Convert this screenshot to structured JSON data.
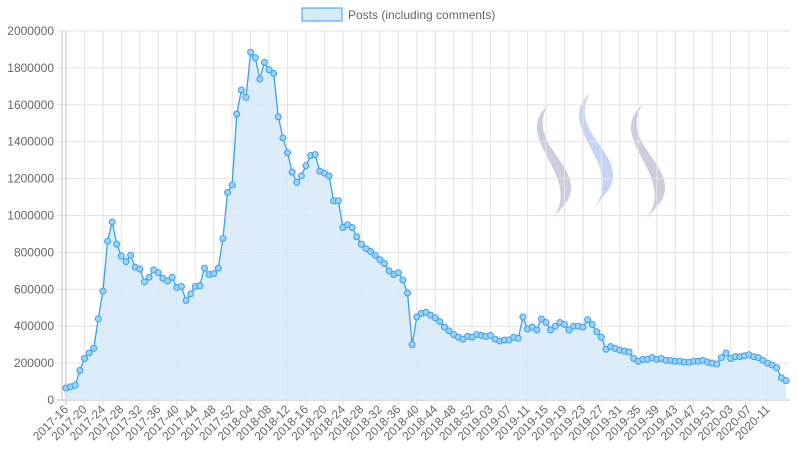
{
  "chart_data": {
    "type": "area",
    "legend": {
      "position": "top",
      "label": "Posts (including comments)"
    },
    "colors": {
      "line": "#36a2eb",
      "fill": "#d6eaf8",
      "point_fill": "#9fd0f3",
      "grid": "#e2e2e2",
      "axis_text": "#666666",
      "watermark": "#b9bdd4",
      "watermark_mid": "#b6c5f0"
    },
    "y_axis": {
      "min": 0,
      "max": 2000000,
      "step": 200000,
      "ticks": [
        "0",
        "200000",
        "400000",
        "600000",
        "800000",
        "1000000",
        "1200000",
        "1400000",
        "1600000",
        "1800000",
        "2000000"
      ]
    },
    "x_tick_labels": [
      "2017-16",
      "2017-20",
      "2017-24",
      "2017-28",
      "2017-32",
      "2017-36",
      "2017-40",
      "2017-44",
      "2017-48",
      "2017-52",
      "2018-04",
      "2018-08",
      "2018-12",
      "2018-16",
      "2018-20",
      "2018-24",
      "2018-28",
      "2018-32",
      "2018-36",
      "2018-40",
      "2018-44",
      "2018-48",
      "2018-52",
      "2019-03",
      "2019-07",
      "2019-11",
      "2019-15",
      "2019-19",
      "2019-23",
      "2019-27",
      "2019-31",
      "2019-35",
      "2019-39",
      "2019-43",
      "2019-47",
      "2019-51",
      "2020-03",
      "2020-07",
      "2020-11"
    ],
    "grid": true,
    "series": [
      {
        "name": "Posts (including comments)",
        "values": [
          65000,
          72000,
          80000,
          160000,
          225000,
          255000,
          280000,
          440000,
          590000,
          860000,
          965000,
          845000,
          780000,
          750000,
          785000,
          720000,
          710000,
          640000,
          665000,
          705000,
          690000,
          660000,
          645000,
          665000,
          610000,
          615000,
          540000,
          575000,
          615000,
          620000,
          715000,
          680000,
          685000,
          715000,
          875000,
          1125000,
          1165000,
          1550000,
          1680000,
          1640000,
          1885000,
          1855000,
          1740000,
          1830000,
          1790000,
          1770000,
          1535000,
          1420000,
          1340000,
          1235000,
          1180000,
          1215000,
          1270000,
          1325000,
          1330000,
          1240000,
          1230000,
          1215000,
          1080000,
          1080000,
          935000,
          950000,
          935000,
          885000,
          845000,
          820000,
          805000,
          785000,
          760000,
          740000,
          700000,
          680000,
          690000,
          650000,
          580000,
          300000,
          450000,
          470000,
          475000,
          460000,
          445000,
          425000,
          395000,
          375000,
          355000,
          340000,
          330000,
          345000,
          340000,
          355000,
          350000,
          345000,
          350000,
          330000,
          320000,
          325000,
          325000,
          340000,
          335000,
          450000,
          385000,
          395000,
          380000,
          440000,
          420000,
          380000,
          400000,
          420000,
          410000,
          380000,
          400000,
          400000,
          395000,
          435000,
          410000,
          370000,
          340000,
          275000,
          290000,
          280000,
          270000,
          265000,
          260000,
          225000,
          210000,
          220000,
          220000,
          230000,
          220000,
          225000,
          215000,
          215000,
          210000,
          210000,
          205000,
          205000,
          210000,
          210000,
          215000,
          205000,
          200000,
          195000,
          230000,
          255000,
          225000,
          235000,
          235000,
          240000,
          245000,
          235000,
          230000,
          215000,
          200000,
          190000,
          175000,
          120000,
          105000
        ]
      }
    ]
  }
}
